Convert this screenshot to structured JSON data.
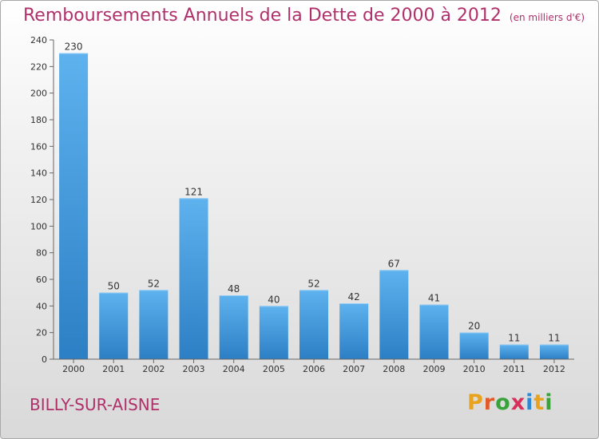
{
  "header": {
    "title": "Remboursements Annuels de la Dette de 2000 à 2012",
    "unit": "(en milliers d'€)"
  },
  "footer": {
    "commune": "BILLY-SUR-AISNE",
    "logo_letters": [
      "P",
      "r",
      "o",
      "x",
      "i",
      "t",
      "i"
    ],
    "logo_colors": [
      "#e8a21e",
      "#e05a2a",
      "#3aa23a",
      "#d8305a",
      "#2a8ad8",
      "#e8a21e",
      "#3aa23a"
    ]
  },
  "colors": {
    "accent": "#b0306a",
    "bar_light": "#5eb2ee",
    "bar_dark": "#2c7fc4",
    "axis": "#666666",
    "grid": "#cfcfcf"
  },
  "chart_data": {
    "type": "bar",
    "title": "Remboursements Annuels de la Dette de 2000 à 2012",
    "subtitle": "(en milliers d'€)",
    "xlabel": "",
    "ylabel": "",
    "categories": [
      "2000",
      "2001",
      "2002",
      "2003",
      "2004",
      "2005",
      "2006",
      "2007",
      "2008",
      "2009",
      "2010",
      "2011",
      "2012"
    ],
    "values": [
      230,
      50,
      52,
      121,
      48,
      40,
      52,
      42,
      67,
      41,
      20,
      11,
      11
    ],
    "ylim": [
      0,
      240
    ],
    "yticks": [
      0,
      20,
      40,
      60,
      80,
      100,
      120,
      140,
      160,
      180,
      200,
      220,
      240
    ],
    "grid": false,
    "legend": "none"
  }
}
